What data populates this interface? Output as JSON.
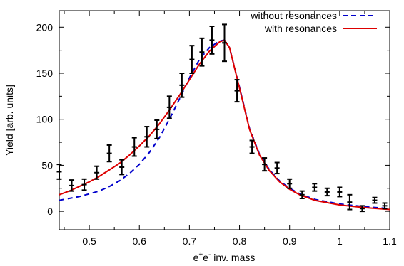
{
  "chart_data": {
    "type": "scatter",
    "xlabel_parts": {
      "e1": "e",
      "sup1": "+",
      "e2": "e",
      "sup2": "-",
      "rest": " inv. mass"
    },
    "ylabel": "Yield [arb. units]",
    "xlim": [
      0.44,
      1.1
    ],
    "ylim": [
      -20,
      218
    ],
    "xticks": [
      0.5,
      0.6,
      0.7,
      0.8,
      0.9,
      1,
      1.1
    ],
    "xtick_labels": [
      "0.5",
      "0.6",
      "0.7",
      "0.8",
      "0.9",
      "1",
      "1.1"
    ],
    "yticks": [
      0,
      50,
      100,
      150,
      200
    ],
    "ytick_labels": [
      "0",
      "50",
      "100",
      "150",
      "200"
    ],
    "grid": false,
    "legend_position": "top-right",
    "data_points": {
      "x": [
        0.44,
        0.465,
        0.49,
        0.515,
        0.54,
        0.565,
        0.59,
        0.615,
        0.635,
        0.66,
        0.685,
        0.705,
        0.725,
        0.745,
        0.77,
        0.795,
        0.825,
        0.85,
        0.875,
        0.9,
        0.925,
        0.95,
        0.975,
        1.0,
        1.02,
        1.045,
        1.07,
        1.09
      ],
      "y": [
        43,
        28,
        29,
        42,
        63,
        48,
        70,
        81,
        89,
        113,
        137,
        165,
        173,
        186,
        183,
        131,
        70,
        51,
        47,
        30,
        18,
        26,
        21,
        21,
        10,
        3,
        12,
        6
      ],
      "err": [
        8,
        6,
        6,
        7,
        9,
        8,
        10,
        11,
        10,
        12,
        13,
        15,
        15,
        15,
        20,
        12,
        7,
        7,
        6,
        5,
        4,
        4,
        4,
        5,
        8,
        3,
        3,
        3
      ]
    },
    "series": [
      {
        "name": "without resonances",
        "color": "#0000cc",
        "style": "dashed",
        "x": [
          0.44,
          0.46,
          0.48,
          0.5,
          0.52,
          0.54,
          0.56,
          0.58,
          0.6,
          0.62,
          0.64,
          0.66,
          0.68,
          0.7,
          0.72,
          0.74,
          0.76,
          0.77,
          0.78,
          0.8,
          0.82,
          0.84,
          0.86,
          0.88,
          0.9,
          0.92,
          0.95,
          1.0,
          1.05,
          1.1
        ],
        "y": [
          12,
          14,
          16,
          19,
          22,
          27,
          33,
          41,
          51,
          64,
          80,
          100,
          122,
          145,
          165,
          178,
          185,
          186,
          178,
          135,
          90,
          62,
          45,
          33,
          25,
          19,
          13,
          8,
          5,
          3
        ]
      },
      {
        "name": "with resonances",
        "color": "#dd0000",
        "style": "solid",
        "x": [
          0.44,
          0.46,
          0.48,
          0.5,
          0.52,
          0.54,
          0.56,
          0.58,
          0.6,
          0.62,
          0.64,
          0.66,
          0.68,
          0.7,
          0.72,
          0.74,
          0.76,
          0.77,
          0.78,
          0.8,
          0.82,
          0.84,
          0.86,
          0.88,
          0.9,
          0.92,
          0.95,
          1.0,
          1.05,
          1.1
        ],
        "y": [
          18,
          22,
          27,
          32,
          38,
          45,
          52,
          61,
          71,
          82,
          95,
          110,
          126,
          143,
          160,
          174,
          184,
          186,
          178,
          134,
          89,
          61,
          44,
          32,
          24,
          18,
          12,
          7,
          4,
          2
        ]
      }
    ]
  }
}
